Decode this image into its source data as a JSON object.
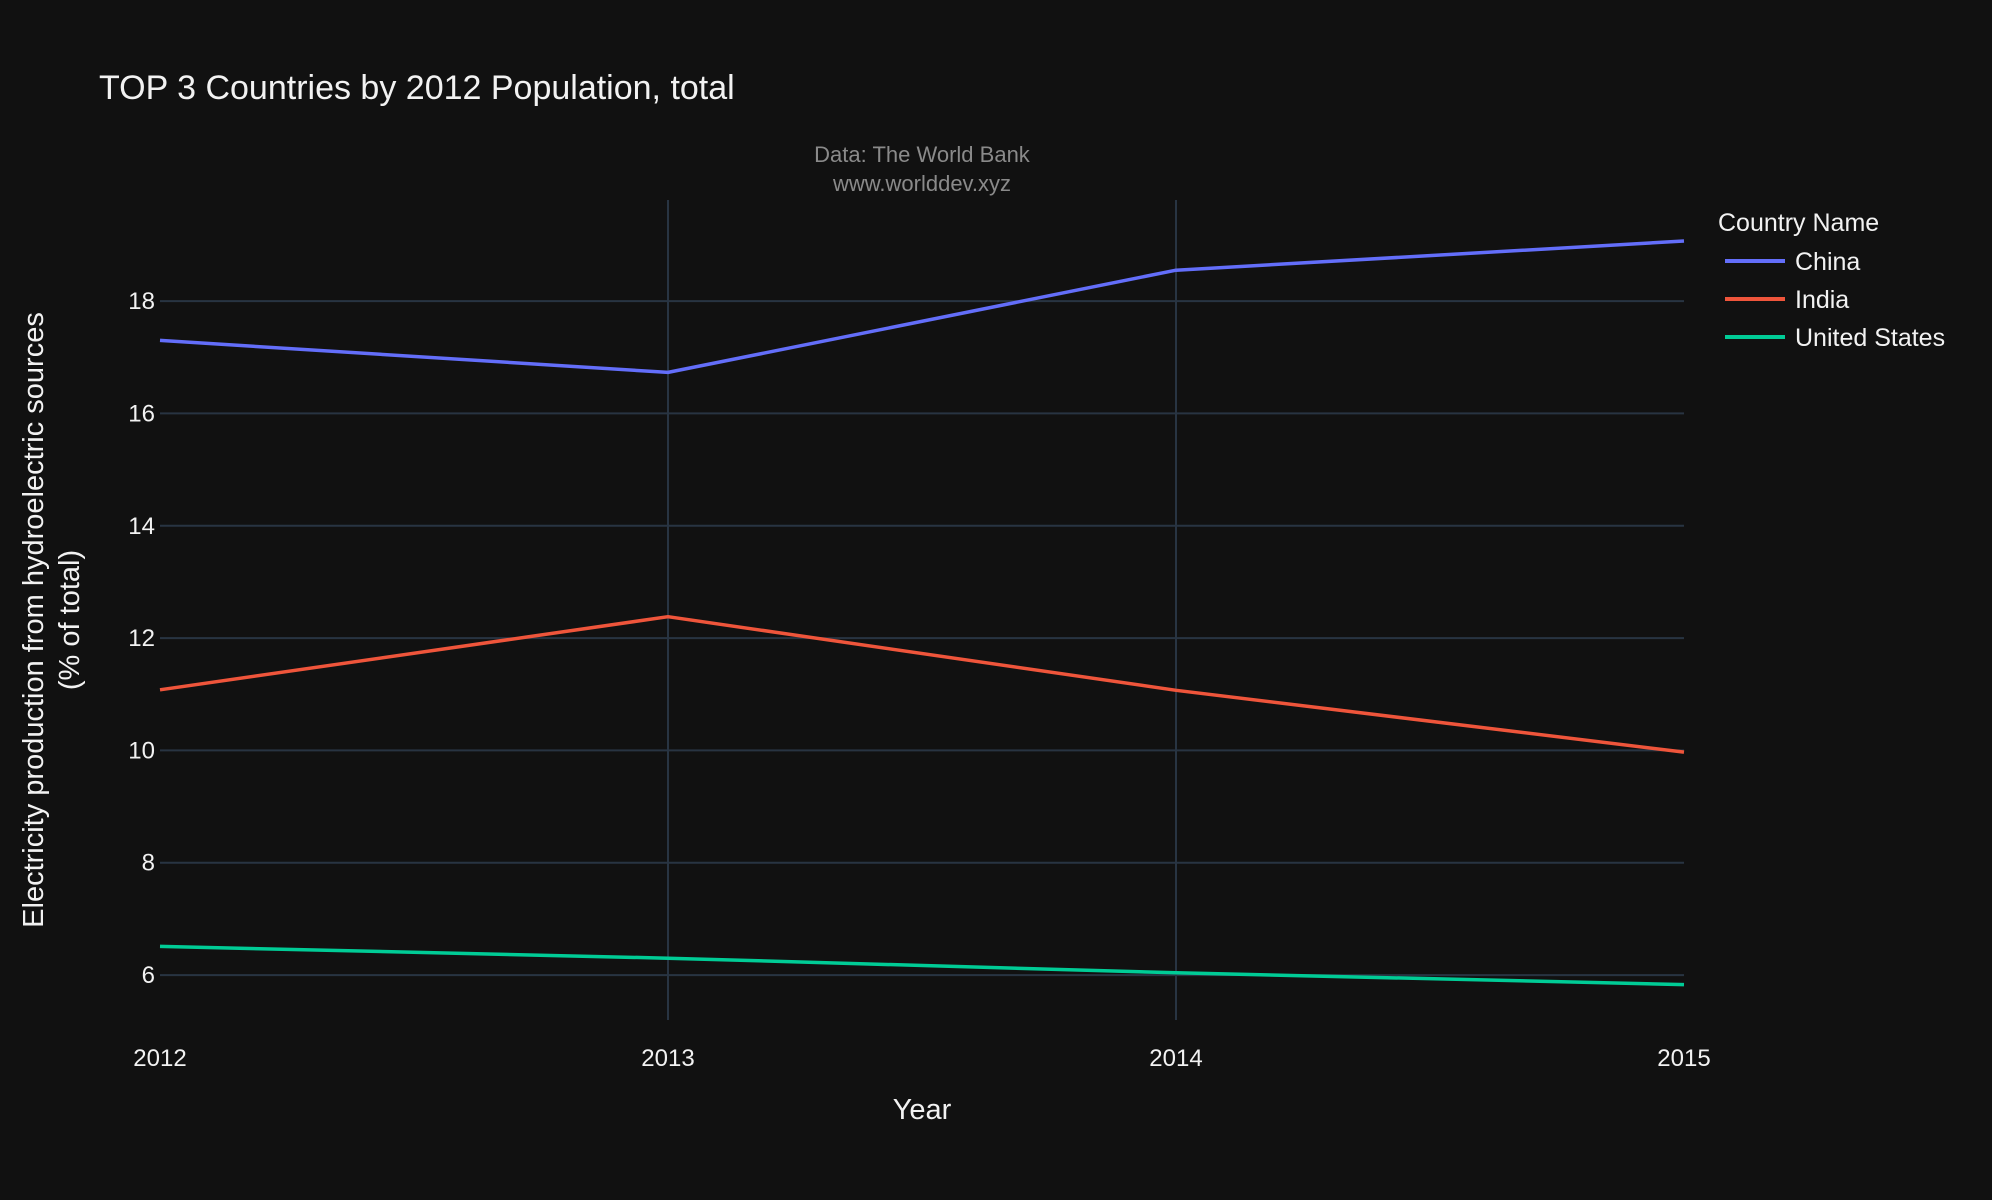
{
  "chart_data": {
    "type": "line",
    "title": "TOP 3 Countries by 2012 Population, total",
    "subtitle_lines": [
      "Data: The World Bank",
      "www.worlddev.xyz"
    ],
    "xlabel": "Year",
    "ylabel_lines": [
      "Electricity production from hydroelectric sources",
      "(% of total)"
    ],
    "x": [
      2012,
      2013,
      2014,
      2015
    ],
    "x_ticks": [
      "2012",
      "2013",
      "2014",
      "2015"
    ],
    "y_ticks": [
      "6",
      "8",
      "10",
      "12",
      "14",
      "16",
      "18"
    ],
    "xlim": [
      2012,
      2015
    ],
    "ylim": [
      5.2,
      19.8
    ],
    "grid": true,
    "legend": {
      "title": "Country Name",
      "position": "right"
    },
    "series": [
      {
        "name": "China",
        "color": "#636efa",
        "values": [
          17.3,
          16.73,
          18.55,
          19.07
        ]
      },
      {
        "name": "India",
        "color": "#ef553b",
        "values": [
          11.08,
          12.38,
          11.07,
          9.97
        ]
      },
      {
        "name": "United States",
        "color": "#00cc96",
        "values": [
          6.51,
          6.3,
          6.04,
          5.83
        ]
      }
    ]
  }
}
